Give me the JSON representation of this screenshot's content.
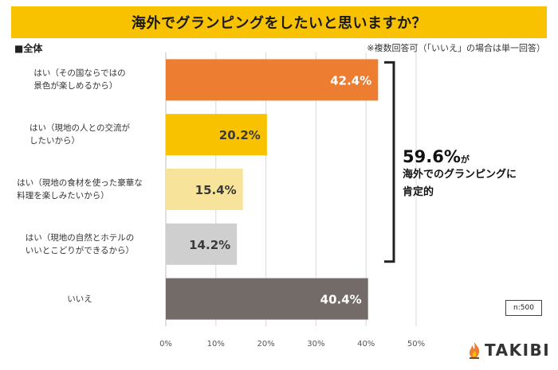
{
  "title": "海外でグランピングをしたいと思いますか？",
  "scope_label": "■全体",
  "note": "※複数回答可（「いいえ」の場合は単一回答）",
  "summary": {
    "percent": "59.6%",
    "particle": "が",
    "line1": "海外でのグランピングに",
    "line2": "肯定的"
  },
  "n_label": "n:500",
  "logo_text": "TAKIBI",
  "chart_data": {
    "type": "bar",
    "orientation": "horizontal",
    "title": "海外でグランピングをしたいと思いますか？",
    "categories": [
      [
        "はい（その国ならではの",
        "景色が楽しめるから）"
      ],
      [
        "はい（現地の人との交流が",
        "したいから）"
      ],
      [
        "はい（現地の食材を使った豪華な",
        "料理を楽しみたいから）"
      ],
      [
        "はい（現地の自然とホテルの",
        "いいとこどりができるから）"
      ],
      [
        "いいえ"
      ]
    ],
    "values": [
      42.4,
      20.2,
      15.4,
      14.2,
      40.4
    ],
    "value_labels": [
      "42.4%",
      "20.2%",
      "15.4%",
      "14.2%",
      "40.4%"
    ],
    "colors": [
      "#ed7d31",
      "#f9c200",
      "#f7e39a",
      "#cfcfcf",
      "#736b67"
    ],
    "label_colors": [
      "#ffffff",
      "#3a3a3a",
      "#3a3a3a",
      "#3a3a3a",
      "#ffffff"
    ],
    "xlim": [
      0,
      50
    ],
    "xticks": [
      0,
      10,
      20,
      30,
      40,
      50
    ],
    "xtick_labels": [
      "0%",
      "10%",
      "20%",
      "30%",
      "40%",
      "50%"
    ],
    "grid": true,
    "bracket_group": [
      0,
      3
    ]
  }
}
